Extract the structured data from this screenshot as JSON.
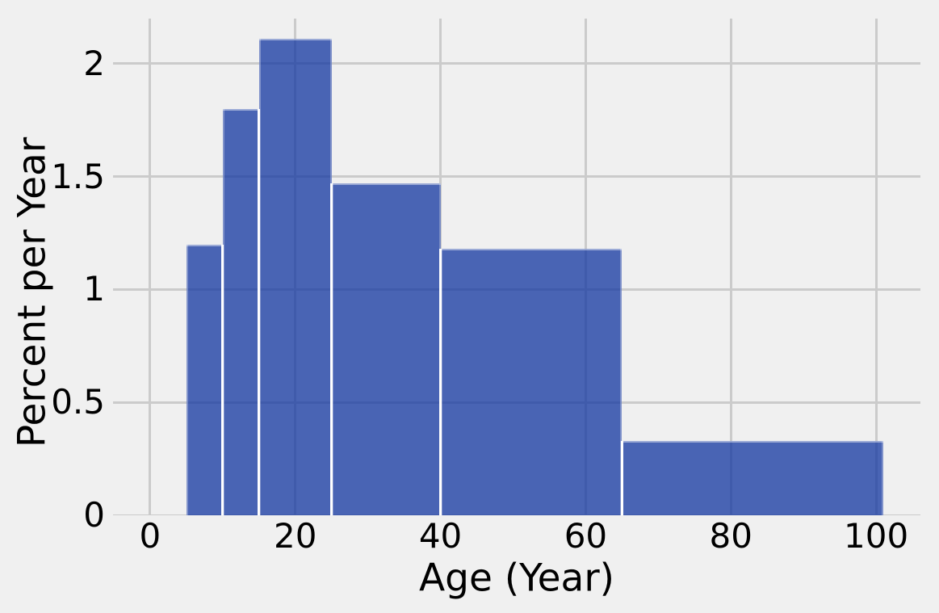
{
  "chart_data": {
    "type": "bar",
    "subtype": "histogram",
    "title": "",
    "xlabel": "Age (Year)",
    "ylabel": "Percent per Year",
    "bins": [
      {
        "start": 5,
        "end": 10,
        "height": 1.2
      },
      {
        "start": 10,
        "end": 15,
        "height": 1.8
      },
      {
        "start": 15,
        "end": 25,
        "height": 2.11
      },
      {
        "start": 25,
        "end": 40,
        "height": 1.47
      },
      {
        "start": 40,
        "end": 65,
        "height": 1.18
      },
      {
        "start": 65,
        "end": 101,
        "height": 0.33
      }
    ],
    "xticks": [
      0,
      20,
      40,
      60,
      80,
      100
    ],
    "xtick_labels": [
      "0",
      "20",
      "40",
      "60",
      "80",
      "100"
    ],
    "yticks": [
      0,
      0.5,
      1,
      1.5,
      2
    ],
    "ytick_labels": [
      "0",
      "0.5",
      "1",
      "1.5",
      "2"
    ],
    "xlim": [
      -5.1,
      106.1
    ],
    "ylim": [
      0,
      2.2
    ],
    "grid": true,
    "legend": false,
    "colors": {
      "background": "#f0f0f0",
      "gridline": "#cbcbcb",
      "bar_fill": "rgba(17,53,160,0.75)",
      "bar_separator": "#ffffff",
      "text": "#000000"
    }
  }
}
